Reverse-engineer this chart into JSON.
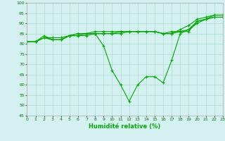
{
  "xlabel": "Humidité relative (%)",
  "bg_color": "#d4f0f0",
  "grid_color": "#aaddcc",
  "line_color": "#00aa00",
  "ylim": [
    45,
    100
  ],
  "xlim": [
    0,
    23
  ],
  "yticks": [
    45,
    50,
    55,
    60,
    65,
    70,
    75,
    80,
    85,
    90,
    95,
    100
  ],
  "xticks": [
    0,
    1,
    2,
    3,
    4,
    5,
    6,
    7,
    8,
    9,
    10,
    11,
    12,
    13,
    14,
    15,
    16,
    17,
    18,
    19,
    20,
    21,
    22,
    23
  ],
  "series": [
    [
      81,
      81,
      83,
      83,
      83,
      84,
      84,
      84,
      85,
      79,
      67,
      60,
      52,
      60,
      64,
      64,
      61,
      72,
      85,
      87,
      90,
      92,
      94,
      94
    ],
    [
      81,
      81,
      84,
      82,
      82,
      84,
      85,
      85,
      85,
      85,
      85,
      85,
      86,
      86,
      86,
      86,
      85,
      85,
      87,
      89,
      92,
      93,
      94,
      94
    ],
    [
      81,
      81,
      83,
      82,
      82,
      84,
      85,
      85,
      86,
      86,
      86,
      86,
      86,
      86,
      86,
      86,
      85,
      85,
      86,
      87,
      91,
      92,
      93,
      93
    ],
    [
      81,
      81,
      83,
      82,
      82,
      84,
      84,
      85,
      85,
      85,
      85,
      86,
      86,
      86,
      86,
      86,
      85,
      86,
      86,
      86,
      91,
      92,
      93,
      93
    ]
  ]
}
